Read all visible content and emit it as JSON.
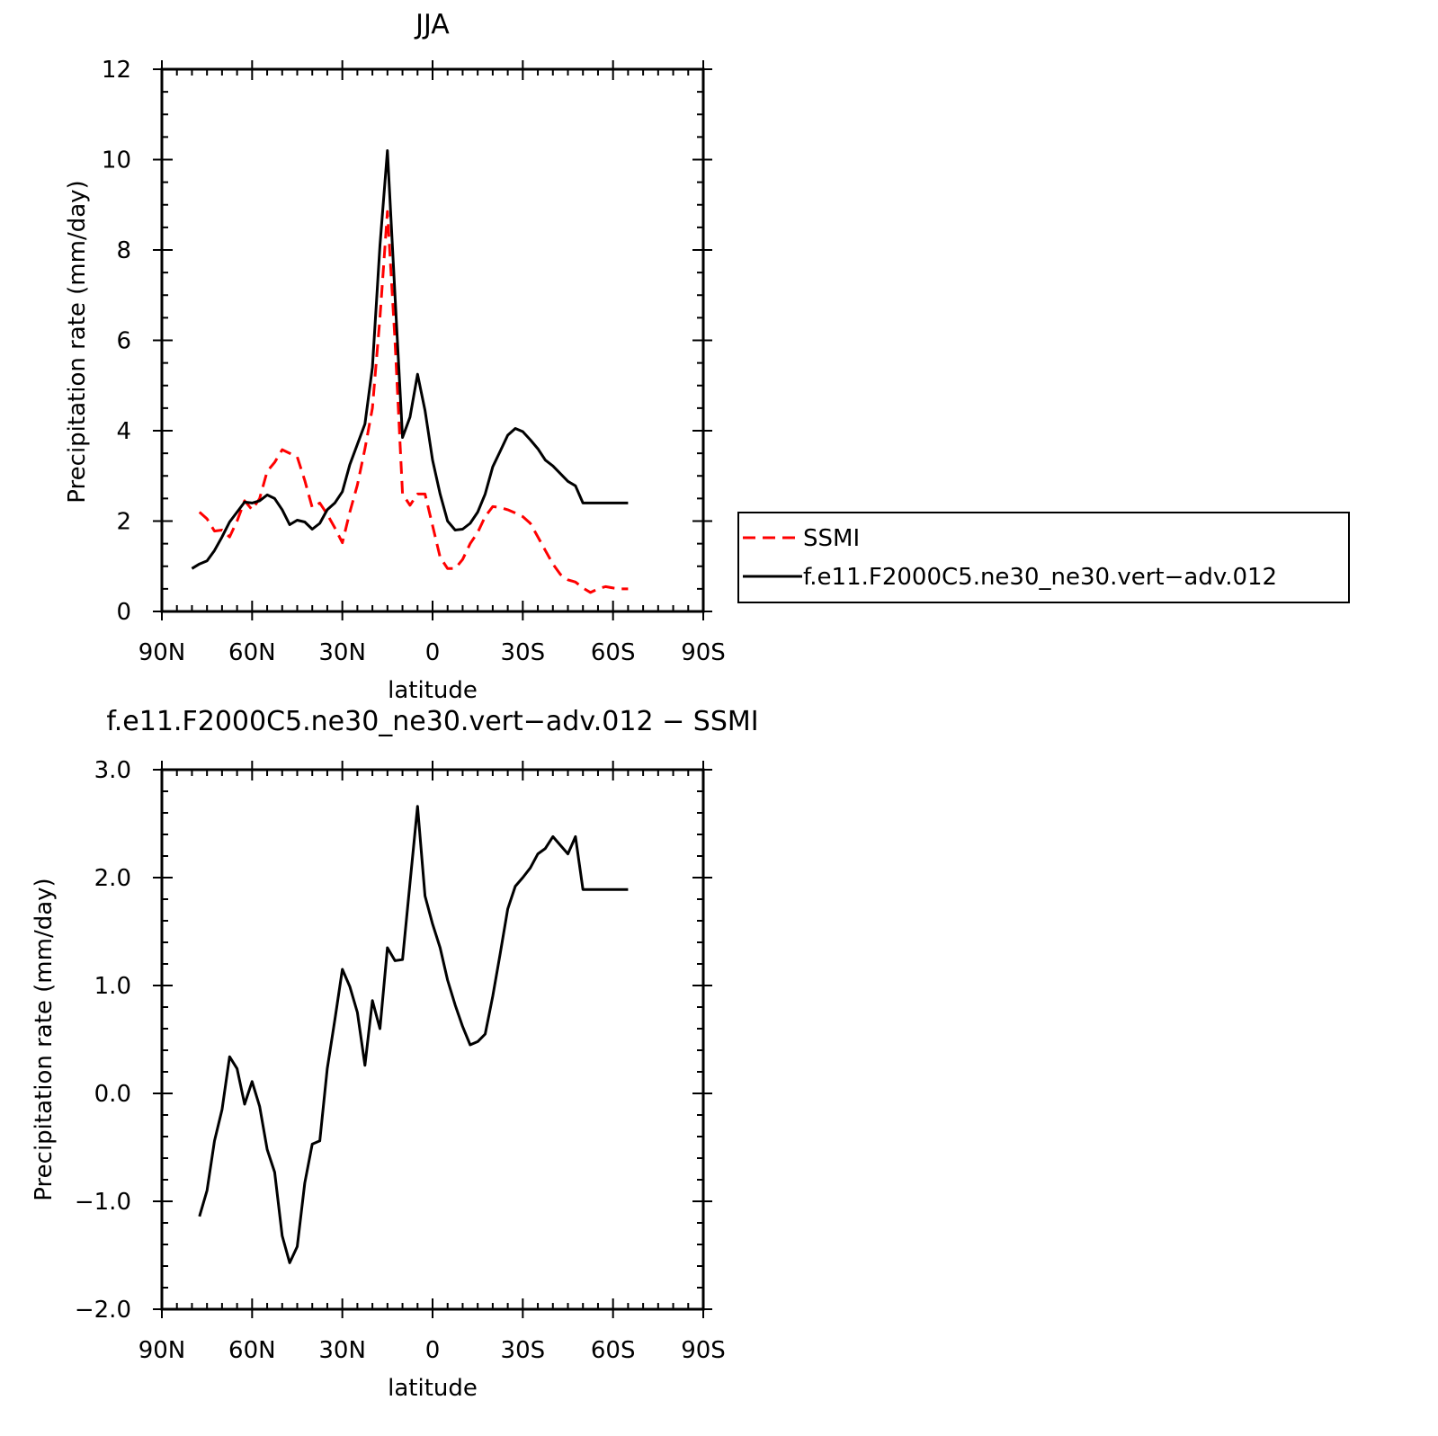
{
  "chart_data": [
    {
      "type": "line",
      "title": "JJA",
      "xlabel": "latitude",
      "ylabel": "Precipitation rate (mm/day)",
      "xlim": [
        90,
        -90
      ],
      "ylim": [
        0,
        12
      ],
      "x_ticks": [
        90,
        60,
        30,
        0,
        -30,
        -60,
        -90
      ],
      "x_tick_labels": [
        "90N",
        "60N",
        "30N",
        "0",
        "30S",
        "60S",
        "90S"
      ],
      "y_ticks": [
        0,
        2,
        4,
        6,
        8,
        10,
        12
      ],
      "y_tick_labels": [
        "0",
        "2",
        "4",
        "6",
        "8",
        "10",
        "12"
      ],
      "grid": false,
      "legend_position": "right",
      "series": [
        {
          "name": "SSMI",
          "color": "#ff0000",
          "dash": "dashed",
          "x": [
            77.5,
            75,
            72.5,
            70,
            67.5,
            65,
            62.5,
            60,
            57.5,
            55,
            52.5,
            50,
            47.5,
            45,
            42.5,
            40,
            37.5,
            35,
            32.5,
            30,
            27.5,
            25,
            22.5,
            20,
            17.5,
            15,
            12.5,
            10,
            7.5,
            5,
            2.5,
            0,
            -2.5,
            -5,
            -7.5,
            -10,
            -12.5,
            -15,
            -17.5,
            -20,
            -22.5,
            -25,
            -27.5,
            -30,
            -32.5,
            -35,
            -37.5,
            -40,
            -42.5,
            -45,
            -47.5,
            -50,
            -52.5,
            -55,
            -57.5,
            -60,
            -62.5,
            -65
          ],
          "values": [
            2.2,
            2.05,
            1.78,
            1.8,
            1.65,
            2.0,
            2.45,
            2.25,
            2.5,
            3.1,
            3.3,
            3.58,
            3.5,
            3.42,
            2.9,
            2.3,
            2.4,
            2.15,
            1.85,
            1.52,
            2.2,
            2.8,
            3.6,
            4.5,
            6.5,
            8.85,
            6.0,
            2.6,
            2.35,
            2.6,
            2.6,
            1.9,
            1.2,
            0.95,
            0.95,
            1.15,
            1.5,
            1.75,
            2.1,
            2.32,
            2.3,
            2.25,
            2.18,
            2.1,
            1.95,
            1.65,
            1.35,
            1.05,
            0.82,
            0.7,
            0.65,
            0.52,
            0.42,
            0.5,
            0.55,
            0.52,
            0.5,
            0.5
          ]
        },
        {
          "name": "f.e11.F2000C5.ne30_ne30.vert−adv.012",
          "color": "#000000",
          "dash": "solid",
          "x": [
            80,
            77.5,
            75,
            72.5,
            70,
            67.5,
            65,
            62.5,
            60,
            57.5,
            55,
            52.5,
            50,
            47.5,
            45,
            42.5,
            40,
            37.5,
            35,
            32.5,
            30,
            27.5,
            25,
            22.5,
            20,
            17.5,
            15,
            12.5,
            10,
            7.5,
            5,
            2.5,
            0,
            -2.5,
            -5,
            -7.5,
            -10,
            -12.5,
            -15,
            -17.5,
            -20,
            -22.5,
            -25,
            -27.5,
            -30,
            -32.5,
            -35,
            -37.5,
            -40,
            -42.5,
            -45,
            -47.5,
            -50,
            -52.5,
            -55,
            -57.5,
            -60,
            -62.5,
            -65
          ],
          "values": [
            0.95,
            1.05,
            1.12,
            1.35,
            1.65,
            1.98,
            2.2,
            2.42,
            2.4,
            2.45,
            2.58,
            2.5,
            2.25,
            1.92,
            2.02,
            1.98,
            1.82,
            1.95,
            2.25,
            2.4,
            2.65,
            3.25,
            3.7,
            4.15,
            5.4,
            8.1,
            10.2,
            7.0,
            3.85,
            4.3,
            5.25,
            4.45,
            3.35,
            2.6,
            2.0,
            1.8,
            1.82,
            1.95,
            2.2,
            2.6,
            3.2,
            3.55,
            3.9,
            4.05,
            3.98,
            3.8,
            3.6,
            3.35,
            3.22,
            3.05,
            2.88,
            2.78,
            2.4,
            2.4,
            2.4,
            2.4,
            2.4,
            2.4,
            2.4
          ]
        }
      ]
    },
    {
      "type": "line",
      "title": "f.e11.F2000C5.ne30_ne30.vert−adv.012 − SSMI",
      "xlabel": "latitude",
      "ylabel": "Precipitation rate (mm/day)",
      "xlim": [
        90,
        -90
      ],
      "ylim": [
        -2,
        3
      ],
      "x_ticks": [
        90,
        60,
        30,
        0,
        -30,
        -60,
        -90
      ],
      "x_tick_labels": [
        "90N",
        "60N",
        "30N",
        "0",
        "30S",
        "60S",
        "90S"
      ],
      "y_ticks": [
        -2,
        -1,
        0,
        1,
        2,
        3
      ],
      "y_tick_labels": [
        "−2.0",
        "−1.0",
        "0.0",
        "1.0",
        "2.0",
        "3.0"
      ],
      "grid": false,
      "series": [
        {
          "color": "#000000",
          "dash": "solid",
          "x": [
            77.5,
            75,
            72.5,
            70,
            67.5,
            65,
            62.5,
            60,
            57.5,
            55,
            52.5,
            50,
            47.5,
            45,
            42.5,
            40,
            37.5,
            35,
            32.5,
            30,
            27.5,
            25,
            22.5,
            20,
            17.5,
            15,
            12.5,
            10,
            7.5,
            5,
            2.5,
            0,
            -2.5,
            -5,
            -7.5,
            -10,
            -12.5,
            -15,
            -17.5,
            -20,
            -22.5,
            -25,
            -27.5,
            -30,
            -32.5,
            -35,
            -37.5,
            -40,
            -42.5,
            -45,
            -47.5,
            -50,
            -52.5,
            -55,
            -57.5,
            -60,
            -62.5,
            -65
          ],
          "values": [
            -1.14,
            -0.9,
            -0.44,
            -0.15,
            0.34,
            0.23,
            -0.1,
            0.11,
            -0.12,
            -0.52,
            -0.73,
            -1.32,
            -1.57,
            -1.42,
            -0.83,
            -0.47,
            -0.44,
            0.23,
            0.68,
            1.15,
            0.99,
            0.75,
            0.26,
            0.86,
            0.6,
            1.35,
            1.23,
            1.24,
            1.95,
            2.66,
            1.83,
            1.57,
            1.35,
            1.05,
            0.82,
            0.62,
            0.45,
            0.48,
            0.55,
            0.9,
            1.3,
            1.71,
            1.92,
            2.0,
            2.09,
            2.22,
            2.27,
            2.38,
            2.3,
            2.22,
            2.38,
            1.89,
            1.89,
            1.89,
            1.89,
            1.89,
            1.89,
            1.89
          ]
        }
      ]
    }
  ]
}
